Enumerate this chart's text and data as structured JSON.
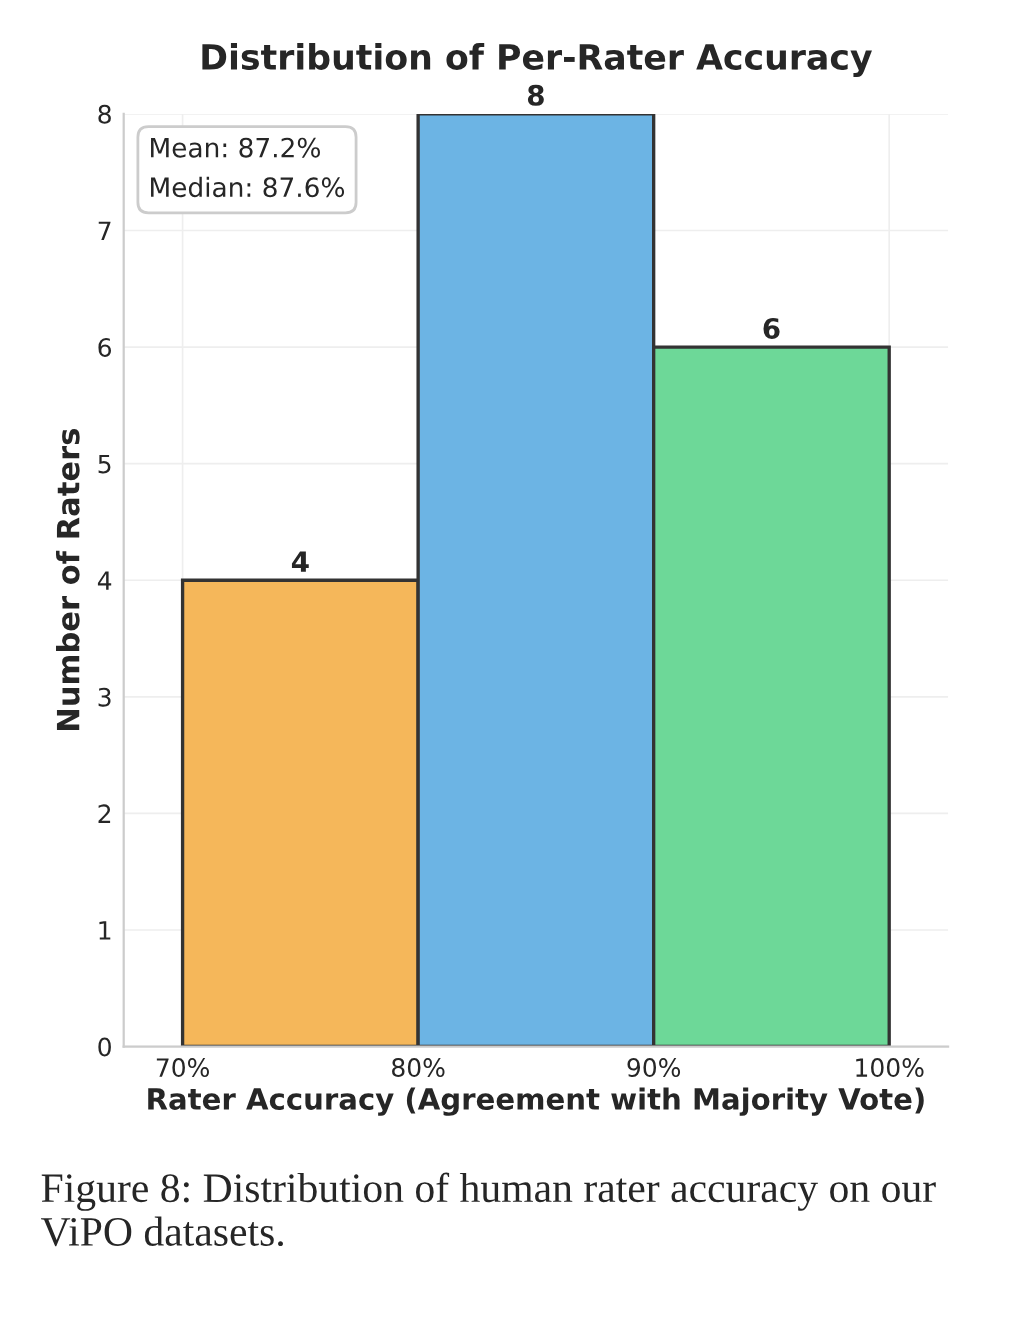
{
  "chart_data": {
    "type": "histogram",
    "title": "Distribution of Per-Rater Accuracy",
    "xlabel": "Rater Accuracy (Agreement with Majority Vote)",
    "ylabel": "Number of Raters",
    "bins": [
      70,
      80,
      90,
      100
    ],
    "values": [
      4,
      8,
      6
    ],
    "colors": [
      "#f5b75a",
      "#6cb4e4",
      "#6dd898"
    ],
    "xlim": [
      67.5,
      102.5
    ],
    "ylim": [
      0,
      8
    ],
    "xticks": [
      {
        "value": 70,
        "label": "70%"
      },
      {
        "value": 80,
        "label": "80%"
      },
      {
        "value": 90,
        "label": "90%"
      },
      {
        "value": 100,
        "label": "100%"
      }
    ],
    "yticks": [
      0,
      1,
      2,
      3,
      4,
      5,
      6,
      7,
      8
    ],
    "grid": true,
    "data_labels": true,
    "annotations": [
      "Mean: 87.2%\nMedian: 87.6%",
      "Figure 8: Distribution of human rater accuracy on our ViPO datasets."
    ]
  }
}
